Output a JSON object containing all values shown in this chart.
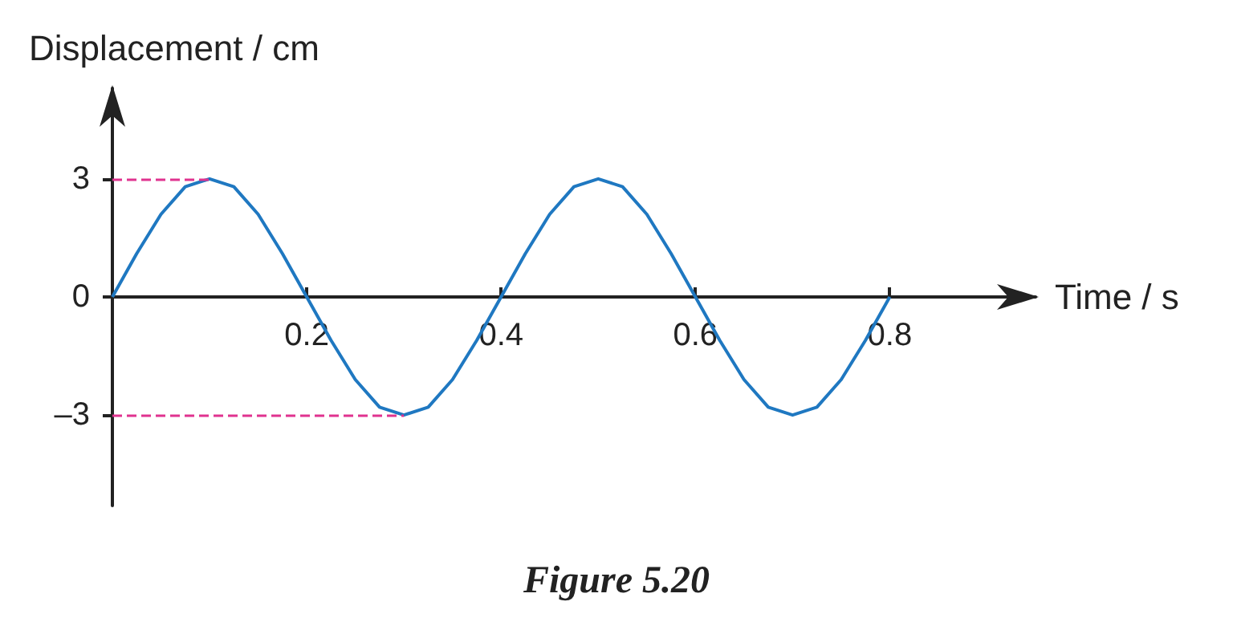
{
  "chart_data": {
    "type": "line",
    "xlabel": "Time / s",
    "ylabel": "Displacement / cm",
    "x": [
      0,
      0.025,
      0.05,
      0.075,
      0.1,
      0.125,
      0.15,
      0.175,
      0.2,
      0.225,
      0.25,
      0.275,
      0.3,
      0.325,
      0.35,
      0.375,
      0.4,
      0.425,
      0.45,
      0.475,
      0.5,
      0.525,
      0.55,
      0.575,
      0.6,
      0.625,
      0.65,
      0.675,
      0.7,
      0.725,
      0.75,
      0.775,
      0.8
    ],
    "series": [
      {
        "color": "#1f78c1",
        "values": [
          0,
          1.1,
          2.1,
          2.8,
          3,
          2.8,
          2.1,
          1.1,
          0,
          -1.1,
          -2.1,
          -2.8,
          -3,
          -2.8,
          -2.1,
          -1.1,
          0,
          1.1,
          2.1,
          2.8,
          3,
          2.8,
          2.1,
          1.1,
          0,
          -1.1,
          -2.1,
          -2.8,
          -3,
          -2.8,
          -2.1,
          -1.1,
          0
        ]
      }
    ],
    "xlim": [
      0,
      0.95
    ],
    "xticks": [
      0.2,
      0.4,
      0.6,
      0.8
    ],
    "ylim": [
      -5.3,
      5.3
    ],
    "yticks": [
      {
        "value": -3,
        "label": "–3"
      },
      0,
      3
    ],
    "ref_lines": [
      {
        "axis": "y",
        "value": 3,
        "color": "#e0338f",
        "line_style": "dashed"
      },
      {
        "axis": "y",
        "value": -3,
        "color": "#e0338f",
        "line_style": "dashed"
      }
    ],
    "annotations": [
      "Figure 5.20"
    ],
    "grid": false,
    "marker": "none",
    "line_style": "solid"
  }
}
